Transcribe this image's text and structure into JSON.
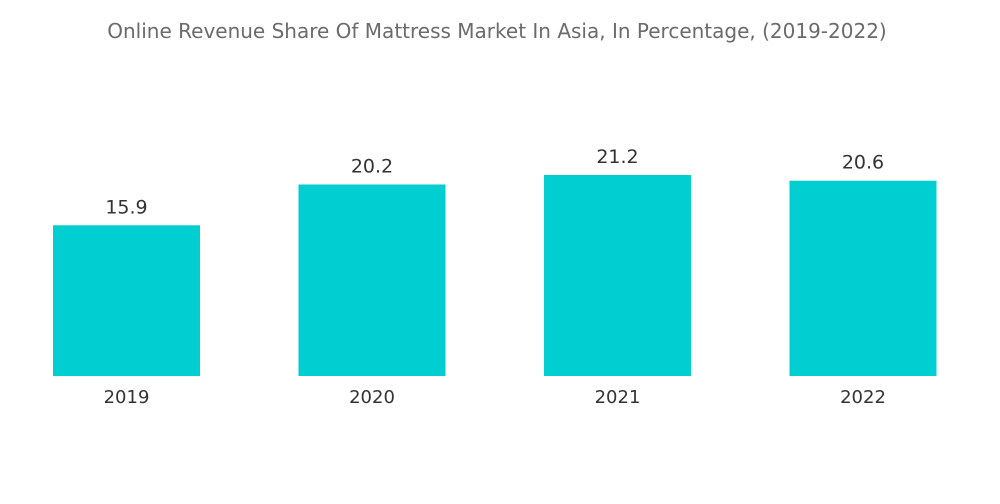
{
  "chart_data": {
    "type": "bar",
    "title": "Online Revenue Share Of Mattress Market In Asia, In Percentage, (2019-2022)",
    "categories": [
      "2019",
      "2020",
      "2021",
      "2022"
    ],
    "values": [
      15.9,
      20.2,
      21.2,
      20.6
    ],
    "value_labels": [
      "15.9",
      "20.2",
      "21.2",
      "20.6"
    ],
    "xlabel": "",
    "ylabel": "",
    "ylim": [
      0,
      21.2
    ],
    "grid": false,
    "legend": "none",
    "bar_color": "#00ced1"
  }
}
